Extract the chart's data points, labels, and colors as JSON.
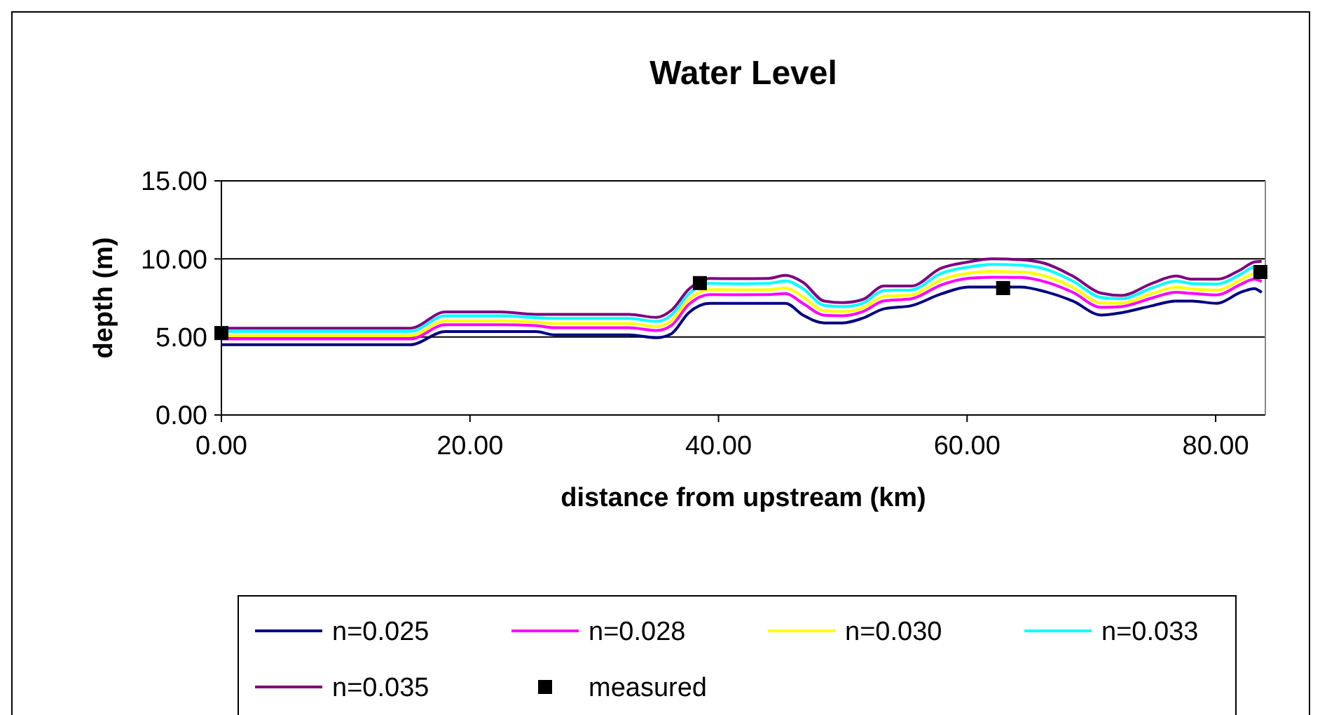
{
  "chart_data": {
    "type": "line",
    "title": "Water Level",
    "xlabel": "distance from upstream (km)",
    "ylabel": "depth (m)",
    "x": [
      0,
      15.2,
      18,
      22.5,
      25.3,
      26.8,
      32.8,
      35,
      36.2,
      37.6,
      39.3,
      41.8,
      44,
      45.4,
      46.8,
      48.5,
      50,
      51.6,
      53.3,
      55.5,
      57.9,
      60.1,
      62,
      64.3,
      66.3,
      68.5,
      70.8,
      72.4,
      74.9,
      76.8,
      78.1,
      80.1,
      82,
      83.1,
      83.7
    ],
    "xlim": [
      0,
      84
    ],
    "xticks": [
      {
        "value": 0,
        "label": "0.00"
      },
      {
        "value": 20,
        "label": "20.00"
      },
      {
        "value": 40,
        "label": "40.00"
      },
      {
        "value": 60,
        "label": "60.00"
      },
      {
        "value": 80,
        "label": "80.00"
      }
    ],
    "ylim": [
      0,
      15
    ],
    "yticks": [
      {
        "value": 0,
        "label": "0.00"
      },
      {
        "value": 5,
        "label": "5.00"
      },
      {
        "value": 10,
        "label": "10.00"
      },
      {
        "value": 15,
        "label": "15.00"
      }
    ],
    "grid": "y",
    "legend": "bottom",
    "marker": "none",
    "line_style": "solid",
    "series": [
      {
        "name": "n=0.025",
        "color": "#000080",
        "values": [
          4.5,
          4.5,
          5.34,
          5.34,
          5.34,
          5.13,
          5.13,
          4.95,
          5.2,
          6.55,
          7.15,
          7.15,
          7.15,
          7.15,
          6.4,
          5.9,
          5.9,
          6.2,
          6.8,
          7.0,
          7.75,
          8.2,
          8.2,
          8.2,
          7.9,
          7.3,
          6.4,
          6.55,
          7.0,
          7.3,
          7.3,
          7.15,
          7.85,
          8.1,
          7.85
        ]
      },
      {
        "name": "n=0.028",
        "color": "#ff00ff",
        "values": [
          4.87,
          4.87,
          5.78,
          5.78,
          5.73,
          5.59,
          5.59,
          5.41,
          5.73,
          7.08,
          7.71,
          7.7,
          7.71,
          7.78,
          7.14,
          6.39,
          6.36,
          6.62,
          7.31,
          7.44,
          8.33,
          8.76,
          8.83,
          8.81,
          8.53,
          7.86,
          6.89,
          6.94,
          7.5,
          7.86,
          7.79,
          7.69,
          8.36,
          8.7,
          8.55
        ]
      },
      {
        "name": "n=0.030",
        "color": "#ffff00",
        "values": [
          5.08,
          5.08,
          6.03,
          6.03,
          5.95,
          5.86,
          5.86,
          5.67,
          6.03,
          7.38,
          8.03,
          8.02,
          8.03,
          8.14,
          7.56,
          6.67,
          6.62,
          6.86,
          7.6,
          7.69,
          8.66,
          9.08,
          9.19,
          9.16,
          8.89,
          8.18,
          7.17,
          7.16,
          7.79,
          8.18,
          8.07,
          8.0,
          8.65,
          9.04,
          8.95
        ]
      },
      {
        "name": "n=0.033",
        "color": "#00ffff",
        "values": [
          5.35,
          5.35,
          6.35,
          6.35,
          6.23,
          6.19,
          6.19,
          5.99,
          6.4,
          7.75,
          8.43,
          8.41,
          8.43,
          8.59,
          8.08,
          7.02,
          6.94,
          7.16,
          7.97,
          8.01,
          9.07,
          9.48,
          9.64,
          9.6,
          9.34,
          8.58,
          7.52,
          7.44,
          8.15,
          8.58,
          8.42,
          8.39,
          9.01,
          9.46,
          9.45
        ]
      },
      {
        "name": "n=0.035",
        "color": "#800080",
        "values": [
          5.56,
          5.56,
          6.6,
          6.6,
          6.45,
          6.45,
          6.45,
          6.25,
          6.7,
          8.05,
          8.75,
          8.73,
          8.75,
          8.95,
          8.5,
          7.3,
          7.2,
          7.4,
          8.26,
          8.26,
          9.4,
          9.8,
          10.0,
          9.95,
          9.7,
          8.9,
          7.8,
          7.66,
          8.44,
          8.9,
          8.7,
          8.7,
          9.3,
          9.8,
          9.85
        ]
      },
      {
        "name": "measured",
        "type": "scatter",
        "marker": "square",
        "color": "#000000",
        "x": [
          0,
          38.5,
          62.9,
          83.6
        ],
        "values": [
          5.25,
          8.45,
          8.13,
          9.16
        ]
      }
    ]
  }
}
